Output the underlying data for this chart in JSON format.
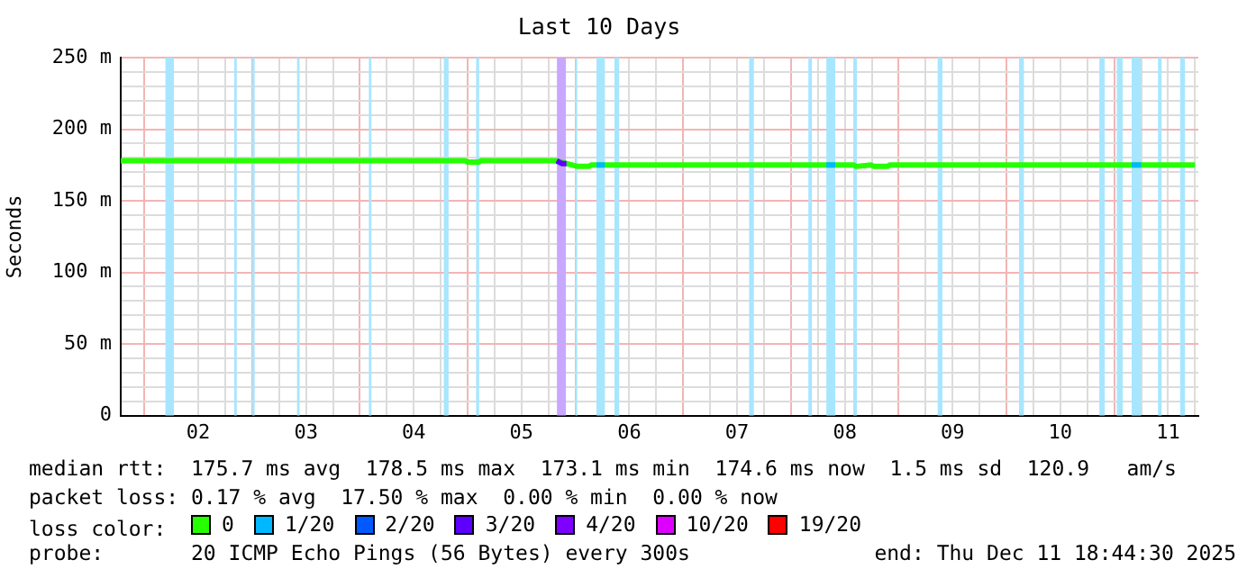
{
  "chart_data": {
    "type": "line",
    "title": "Last 10 Days",
    "ylabel": "Seconds",
    "legend_title": "loss color:",
    "legend": "bottom",
    "grid": true,
    "marker": "none",
    "line_style": "solid",
    "xlim": [
      "2025-12-01T18:44",
      "2025-12-11T18:44"
    ],
    "xticks": [
      {
        "value": "2025-12-02T00:00",
        "label": null
      },
      {
        "value": "2025-12-02T12:00",
        "label": "02"
      },
      {
        "value": "2025-12-02T18:00",
        "label": null
      },
      {
        "value": "2025-12-03T00:00",
        "label": null
      },
      {
        "value": "2025-12-03T06:00",
        "label": null
      },
      {
        "value": "2025-12-03T12:00",
        "label": "03"
      },
      {
        "value": "2025-12-03T18:00",
        "label": null
      },
      {
        "value": "2025-12-04T00:00",
        "label": null
      },
      {
        "value": "2025-12-04T06:00",
        "label": null
      },
      {
        "value": "2025-12-04T12:00",
        "label": "04"
      },
      {
        "value": "2025-12-04T18:00",
        "label": null
      },
      {
        "value": "2025-12-05T00:00",
        "label": null
      },
      {
        "value": "2025-12-05T06:00",
        "label": null
      },
      {
        "value": "2025-12-05T12:00",
        "label": "05"
      },
      {
        "value": "2025-12-05T18:00",
        "label": null
      },
      {
        "value": "2025-12-06T00:00",
        "label": null
      },
      {
        "value": "2025-12-06T12:00",
        "label": "06"
      },
      {
        "value": "2025-12-06T18:00",
        "label": null
      },
      {
        "value": "2025-12-07T00:00",
        "label": null
      },
      {
        "value": "2025-12-07T06:00",
        "label": null
      },
      {
        "value": "2025-12-07T12:00",
        "label": "07"
      },
      {
        "value": "2025-12-07T18:00",
        "label": null
      },
      {
        "value": "2025-12-08T00:00",
        "label": null
      },
      {
        "value": "2025-12-08T06:00",
        "label": null
      },
      {
        "value": "2025-12-08T12:00",
        "label": "08"
      },
      {
        "value": "2025-12-08T18:00",
        "label": null
      },
      {
        "value": "2025-12-09T00:00",
        "label": null
      },
      {
        "value": "2025-12-09T06:00",
        "label": null
      },
      {
        "value": "2025-12-09T12:00",
        "label": "09"
      },
      {
        "value": "2025-12-09T18:00",
        "label": null
      },
      {
        "value": "2025-12-10T00:00",
        "label": null
      },
      {
        "value": "2025-12-10T06:00",
        "label": null
      },
      {
        "value": "2025-12-10T12:00",
        "label": "10"
      },
      {
        "value": "2025-12-10T18:00",
        "label": null
      },
      {
        "value": "2025-12-11T00:00",
        "label": null
      },
      {
        "value": "2025-12-11T06:00",
        "label": null
      },
      {
        "value": "2025-12-11T12:00",
        "label": "11"
      },
      {
        "value": "2025-12-11T18:00",
        "label": null
      }
    ],
    "ylim": [
      0,
      250
    ],
    "yticks": [
      {
        "value": 0,
        "label": "0"
      },
      {
        "value": 10,
        "label": null
      },
      {
        "value": 20,
        "label": null
      },
      {
        "value": 30,
        "label": null
      },
      {
        "value": 40,
        "label": null
      },
      {
        "value": 50,
        "label": "50 m"
      },
      {
        "value": 60,
        "label": null
      },
      {
        "value": 70,
        "label": null
      },
      {
        "value": 80,
        "label": null
      },
      {
        "value": 90,
        "label": null
      },
      {
        "value": 100,
        "label": "100 m"
      },
      {
        "value": 110,
        "label": null
      },
      {
        "value": 120,
        "label": null
      },
      {
        "value": 130,
        "label": null
      },
      {
        "value": 140,
        "label": null
      },
      {
        "value": 150,
        "label": "150 m"
      },
      {
        "value": 160,
        "label": null
      },
      {
        "value": 170,
        "label": null
      },
      {
        "value": 180,
        "label": null
      },
      {
        "value": 190,
        "label": null
      },
      {
        "value": 200,
        "label": "200 m"
      },
      {
        "value": 210,
        "label": null
      },
      {
        "value": 220,
        "label": null
      },
      {
        "value": 230,
        "label": null
      },
      {
        "value": 240,
        "label": null
      },
      {
        "value": 250,
        "label": "250 m"
      }
    ],
    "series": [
      {
        "name": "0",
        "color": "#26ff00",
        "x": [
          "2025-12-01T18:44",
          "2025-12-02T12:00",
          "2025-12-03T12:00",
          "2025-12-04T12:00",
          "2025-12-04T23:30",
          "2025-12-05T00:00",
          "2025-12-05T02:30",
          "2025-12-05T03:00",
          "2025-12-05T19:50",
          "2025-12-05T22:00",
          "2025-12-06T00:30",
          "2025-12-06T03:00",
          "2025-12-06T03:30",
          "2025-12-07T12:00",
          "2025-12-08T12:00",
          "2025-12-08T14:00",
          "2025-12-08T14:30",
          "2025-12-08T17:50",
          "2025-12-08T18:30",
          "2025-12-08T21:30",
          "2025-12-08T22:00",
          "2025-12-09T12:00",
          "2025-12-10T12:00",
          "2025-12-11T18:00"
        ],
        "values": [
          178,
          178,
          178,
          178,
          178,
          177,
          177,
          178,
          178,
          176,
          174,
          174,
          175,
          175,
          175,
          175,
          174,
          175,
          174,
          174,
          175,
          175,
          175,
          175
        ]
      },
      {
        "name": "1/20",
        "color": "#00b8ff",
        "x": [
          "2025-12-06T04:41",
          "2025-12-06T06:34",
          "2025-12-06T07:00",
          "2025-12-08T07:53",
          "2025-12-08T09:53",
          "2025-12-08T11:00",
          "2025-12-11T03:53",
          "2025-12-11T06:00"
        ],
        "values": [
          175,
          175,
          null,
          175,
          175,
          null,
          175,
          175
        ]
      },
      {
        "name": "2/20",
        "color": "#0059ff"
      },
      {
        "name": "3/20",
        "color": "#5e00ff",
        "x": [
          "2025-12-05T19:50",
          "2025-12-05T21:00",
          "2025-12-05T22:00"
        ],
        "values": [
          178,
          176,
          176
        ]
      },
      {
        "name": "4/20",
        "color": "#7e00ff"
      },
      {
        "name": "10/20",
        "color": "#dd00ff"
      },
      {
        "name": "19/20",
        "color": "#ff0000"
      }
    ],
    "bands": [
      {
        "axis": "x",
        "from": "2025-12-02T04:41",
        "to": "2025-12-02T06:34",
        "color": "#a8e6ff"
      },
      {
        "axis": "x",
        "from": "2025-12-02T20:00",
        "to": "2025-12-02T20:34",
        "color": "#a8e6ff"
      },
      {
        "axis": "x",
        "from": "2025-12-03T00:00",
        "to": "2025-12-03T00:34",
        "color": "#a8e6ff"
      },
      {
        "axis": "x",
        "from": "2025-12-03T10:00",
        "to": "2025-12-03T10:34",
        "color": "#a8e6ff"
      },
      {
        "axis": "x",
        "from": "2025-12-04T02:00",
        "to": "2025-12-04T02:34",
        "color": "#a8e6ff"
      },
      {
        "axis": "x",
        "from": "2025-12-04T18:41",
        "to": "2025-12-04T19:45",
        "color": "#a8e6ff"
      },
      {
        "axis": "x",
        "from": "2025-12-05T01:53",
        "to": "2025-12-05T02:34",
        "color": "#a8e6ff"
      },
      {
        "axis": "x",
        "from": "2025-12-05T19:53",
        "to": "2025-12-05T21:53",
        "color": "#c8a8ff"
      },
      {
        "axis": "x",
        "from": "2025-12-06T00:00",
        "to": "2025-12-06T00:24",
        "color": "#a8e6ff"
      },
      {
        "axis": "x",
        "from": "2025-12-06T04:41",
        "to": "2025-12-06T06:34",
        "color": "#a8e6ff"
      },
      {
        "axis": "x",
        "from": "2025-12-06T08:41",
        "to": "2025-12-06T09:45",
        "color": "#a8e6ff"
      },
      {
        "axis": "x",
        "from": "2025-12-07T14:41",
        "to": "2025-12-07T15:45",
        "color": "#a8e6ff"
      },
      {
        "axis": "x",
        "from": "2025-12-08T03:53",
        "to": "2025-12-08T04:41",
        "color": "#a8e6ff"
      },
      {
        "axis": "x",
        "from": "2025-12-08T07:53",
        "to": "2025-12-08T09:53",
        "color": "#a8e6ff"
      },
      {
        "axis": "x",
        "from": "2025-12-08T13:53",
        "to": "2025-12-08T14:41",
        "color": "#a8e6ff"
      },
      {
        "axis": "x",
        "from": "2025-12-09T08:41",
        "to": "2025-12-09T09:45",
        "color": "#a8e6ff"
      },
      {
        "axis": "x",
        "from": "2025-12-10T02:48",
        "to": "2025-12-10T03:53",
        "color": "#a8e6ff"
      },
      {
        "axis": "x",
        "from": "2025-12-10T20:41",
        "to": "2025-12-10T21:53",
        "color": "#a8e6ff"
      },
      {
        "axis": "x",
        "from": "2025-12-11T00:34",
        "to": "2025-12-11T01:53",
        "color": "#a8e6ff"
      },
      {
        "axis": "x",
        "from": "2025-12-11T03:53",
        "to": "2025-12-11T06:00",
        "color": "#a8e6ff"
      },
      {
        "axis": "x",
        "from": "2025-12-11T09:45",
        "to": "2025-12-11T10:34",
        "color": "#a8e6ff"
      },
      {
        "axis": "x",
        "from": "2025-12-11T14:41",
        "to": "2025-12-11T15:45",
        "color": "#a8e6ff"
      }
    ],
    "annotations": [
      "median rtt:  175.7 ms avg  178.5 ms max  173.1 ms min  174.6 ms now  1.5 ms sd  120.9   am/s",
      "packet loss: 0.17 % avg  17.50 % max  0.00 % min  0.00 % now",
      "probe:       20 ICMP Echo Pings (56 Bytes) every 300s",
      "end: Thu Dec 11 18:44:30 2025"
    ]
  }
}
